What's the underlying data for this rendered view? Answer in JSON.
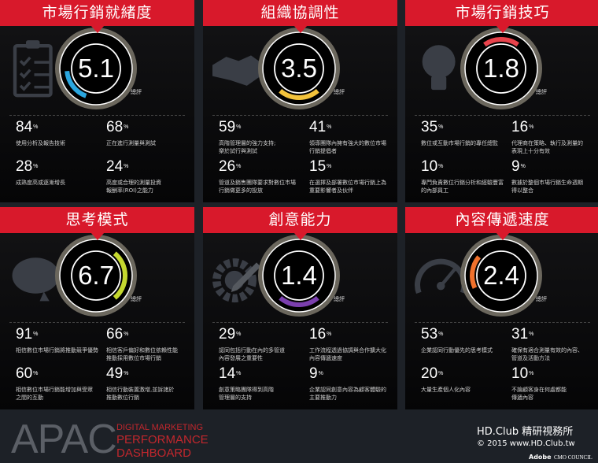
{
  "score_label": "總評",
  "panels": [
    {
      "title": "市場行銷就緒度",
      "score": "5.1",
      "icon": "clipboard-icon",
      "color": "#2aa6df",
      "stats": [
        {
          "value": "84",
          "unit": "%",
          "desc": "使用分析及報告技術"
        },
        {
          "value": "68",
          "unit": "%",
          "desc": "正在進行測量與測試"
        },
        {
          "value": "28",
          "unit": "%",
          "desc": "成熟度高或逐漸增長"
        },
        {
          "value": "24",
          "unit": "%",
          "desc": "高度或合理的測量投資\n報酬率(ROI)之能力"
        }
      ]
    },
    {
      "title": "組織協調性",
      "score": "3.5",
      "icon": "handshake-icon",
      "color": "#f3c33b",
      "stats": [
        {
          "value": "59",
          "unit": "%",
          "desc": "高階管理層的強力支持;\n樂於試行與測試"
        },
        {
          "value": "41",
          "unit": "%",
          "desc": "領導團隊內擁有強大的數位市場\n行銷提倡者"
        },
        {
          "value": "26",
          "unit": "%",
          "desc": "管道及銷售團隊要求對數位市場\n行銷做更多的投放"
        },
        {
          "value": "15",
          "unit": "%",
          "desc": "在選擇及部署數位市場行銷上為\n重要影響者及伙伴"
        }
      ]
    },
    {
      "title": "市場行銷技巧",
      "score": "1.8",
      "icon": "lightbulb-icon",
      "color": "#e8434c",
      "stats": [
        {
          "value": "35",
          "unit": "%",
          "desc": "數位或互動市場行銷的專任總監"
        },
        {
          "value": "16",
          "unit": "%",
          "desc": "代理商在策略、執行及測量的\n表現上十分有效"
        },
        {
          "value": "10",
          "unit": "%",
          "desc": "專門負責數位行銷分析和經驗豐富\n的內部員工"
        },
        {
          "value": "9",
          "unit": "%",
          "desc": "數據於整個市場行銷生命週期\n得以整合"
        }
      ]
    },
    {
      "title": "思考模式",
      "score": "6.7",
      "icon": "brain-icon",
      "color": "#c5d82f",
      "stats": [
        {
          "value": "91",
          "unit": "%",
          "desc": "相信數位市場行銷將推動競爭優勢"
        },
        {
          "value": "66",
          "unit": "%",
          "desc": "相信客戶偏好和數位依賴性能\n推動採用數位市場行銷"
        },
        {
          "value": "60",
          "unit": "%",
          "desc": "相信數位市場行銷能增加與受眾\n之間的互動"
        },
        {
          "value": "49",
          "unit": "%",
          "desc": "相信行動裝置激增,並訴諸於\n推動數位行銷"
        }
      ]
    },
    {
      "title": "創意能力",
      "score": "1.4",
      "icon": "gear-pencil-icon",
      "color": "#7b3fae",
      "stats": [
        {
          "value": "29",
          "unit": "%",
          "desc": "認同包括行動在內的多管道\n內容發展之重要性"
        },
        {
          "value": "16",
          "unit": "%",
          "desc": "工作流程透過協調與合作擴大化\n內容傳遞速度"
        },
        {
          "value": "14",
          "unit": "%",
          "desc": "創意策略團隊得到高階\n管理層的支持"
        },
        {
          "value": "9",
          "unit": "%",
          "desc": "企業認同創意內容為顧客體驗的\n主要推動力"
        }
      ]
    },
    {
      "title": "內容傳遞速度",
      "score": "2.4",
      "icon": "speedometer-icon",
      "color": "#f0712c",
      "stats": [
        {
          "value": "53",
          "unit": "%",
          "desc": "企業認同行動優先的思考模式"
        },
        {
          "value": "31",
          "unit": "%",
          "desc": "確保有適合測量有效的內容、\n管道及活動方法"
        },
        {
          "value": "20",
          "unit": "%",
          "desc": "大量生產個人化內容"
        },
        {
          "value": "10",
          "unit": "%",
          "desc": "不論顧客身在何處都能\n傳遞內容"
        }
      ]
    }
  ],
  "footer": {
    "region": "APAC",
    "subtitle": [
      "DIGITAL MARKETING",
      "PERFORMANCE",
      "DASHBOARD"
    ],
    "watermark": "HD.Club 精研視務所",
    "copyright": "© 2015  www.HD.Club.tw",
    "logos": [
      "Adobe",
      "CMO COUNCIL"
    ]
  }
}
